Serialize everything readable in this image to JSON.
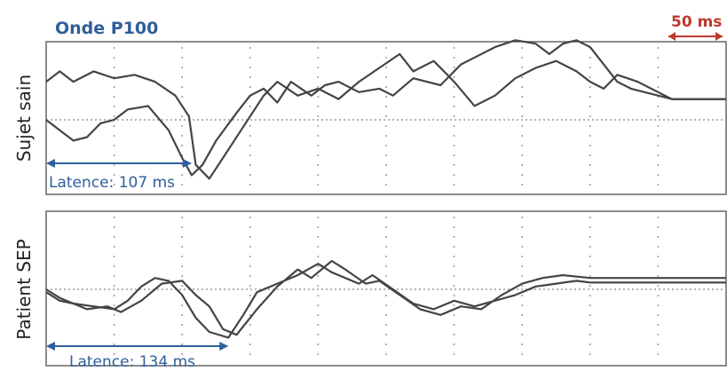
{
  "chart_data": {
    "type": "line",
    "title": "Onde P100",
    "scale_bar": "50 ms",
    "colors": {
      "title": "#2f5f9a",
      "scale": "#c0392b",
      "trace": "#444444",
      "grid": "#9a9a9a"
    },
    "panels": [
      {
        "ylabel": "Sujet sain",
        "latency_label": "Latence: 107 ms",
        "latency_ms": 107,
        "x_unit": "ms",
        "x_range": [
          0,
          500
        ],
        "series": [
          {
            "x": [
              0,
              10,
              20,
              35,
              50,
              65,
              80,
              95,
              105,
              110,
              120,
              130,
              145,
              160,
              170,
              185,
              200,
              215,
              230,
              245,
              260,
              270,
              285,
              300,
              315,
              330,
              345,
              360,
              375,
              390,
              400,
              410,
              420,
              435,
              450,
              460,
              500
            ],
            "y": [
              0.55,
              0.7,
              0.55,
              0.7,
              0.6,
              0.65,
              0.55,
              0.35,
              0.05,
              -0.65,
              -0.85,
              -0.55,
              -0.1,
              0.35,
              0.55,
              0.35,
              0.45,
              0.3,
              0.55,
              0.75,
              0.95,
              0.7,
              0.85,
              0.55,
              0.2,
              0.35,
              0.6,
              0.75,
              0.85,
              0.7,
              0.55,
              0.45,
              0.65,
              0.55,
              0.4,
              0.3,
              0.3
            ]
          },
          {
            "x": [
              0,
              10,
              20,
              30,
              40,
              50,
              60,
              75,
              90,
              100,
              107,
              115,
              125,
              140,
              150,
              160,
              170,
              180,
              195,
              205,
              215,
              230,
              245,
              255,
              270,
              290,
              305,
              315,
              330,
              345,
              360,
              370,
              380,
              390,
              400,
              410,
              420,
              430,
              450,
              460,
              500
            ],
            "y": [
              0.0,
              -0.15,
              -0.3,
              -0.25,
              -0.05,
              0.0,
              0.15,
              0.2,
              -0.15,
              -0.55,
              -0.8,
              -0.65,
              -0.3,
              0.1,
              0.35,
              0.45,
              0.25,
              0.55,
              0.35,
              0.5,
              0.55,
              0.4,
              0.45,
              0.35,
              0.6,
              0.5,
              0.8,
              0.9,
              1.05,
              1.15,
              1.1,
              0.95,
              1.1,
              1.15,
              1.05,
              0.8,
              0.55,
              0.45,
              0.35,
              0.3,
              0.3
            ]
          }
        ]
      },
      {
        "ylabel": "Patient SEP",
        "latency_label": "Latence: 134 ms",
        "latency_ms": 134,
        "x_unit": "ms",
        "x_range": [
          0,
          500
        ],
        "series": [
          {
            "x": [
              0,
              10,
              20,
              35,
              50,
              60,
              70,
              80,
              90,
              100,
              110,
              120,
              134,
              145,
              155,
              170,
              185,
              200,
              210,
              220,
              230,
              240,
              255,
              270,
              285,
              300,
              315,
              330,
              345,
              360,
              375,
              390,
              400,
              420,
              440,
              460,
              500
            ],
            "y": [
              -0.05,
              -0.2,
              -0.25,
              -0.3,
              -0.35,
              -0.2,
              0.05,
              0.2,
              0.15,
              -0.1,
              -0.5,
              -0.75,
              -0.85,
              -0.45,
              -0.05,
              0.1,
              0.25,
              0.45,
              0.3,
              0.2,
              0.1,
              0.25,
              0.0,
              -0.25,
              -0.35,
              -0.2,
              -0.3,
              -0.2,
              -0.1,
              0.05,
              0.1,
              0.15,
              0.12,
              0.12,
              0.12,
              0.12,
              0.12
            ]
          },
          {
            "x": [
              0,
              10,
              20,
              30,
              45,
              55,
              70,
              85,
              100,
              110,
              120,
              130,
              140,
              155,
              170,
              185,
              195,
              210,
              220,
              235,
              245,
              260,
              275,
              290,
              305,
              320,
              335,
              350,
              365,
              380,
              400,
              420,
              440,
              460,
              500
            ],
            "y": [
              0.0,
              -0.15,
              -0.25,
              -0.35,
              -0.3,
              -0.4,
              -0.2,
              0.1,
              0.15,
              -0.1,
              -0.3,
              -0.7,
              -0.8,
              -0.35,
              0.05,
              0.35,
              0.2,
              0.5,
              0.35,
              0.1,
              0.15,
              -0.1,
              -0.35,
              -0.45,
              -0.3,
              -0.35,
              -0.1,
              0.1,
              0.2,
              0.25,
              0.2,
              0.2,
              0.2,
              0.2,
              0.2
            ]
          }
        ]
      }
    ]
  }
}
